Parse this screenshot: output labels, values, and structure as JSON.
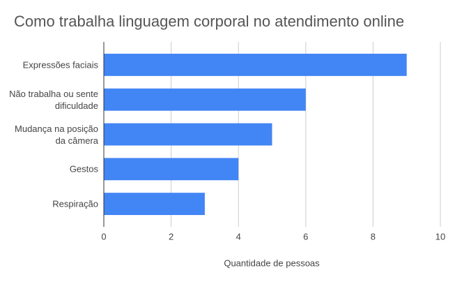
{
  "chart_data": {
    "type": "bar",
    "orientation": "horizontal",
    "title": "Como trabalha linguagem corporal no atendimento online",
    "x_label": "Quantidade de pessoas",
    "categories": [
      "Expressões faciais",
      "Não trabalha ou sente dificuldade",
      "Mudança na posição da câmera",
      "Gestos",
      "Respiração"
    ],
    "values": [
      9,
      6,
      5,
      4,
      3
    ],
    "color": "#4285f4",
    "xlim": [
      0,
      10
    ],
    "xticks": [
      0,
      2,
      4,
      6,
      8,
      10
    ],
    "grid": true
  }
}
